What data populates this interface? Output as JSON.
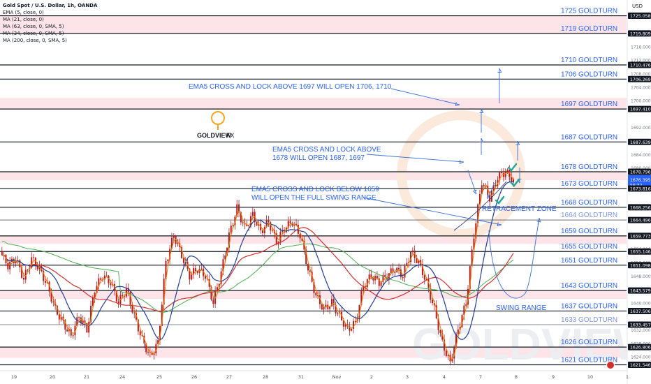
{
  "legend": {
    "title": "Gold Spot / U.S. Dollar, 1h, OANDA",
    "lines": [
      "EMA (5, close, 0)",
      "MA (21, close, 0)",
      "MA (63, close, 0, SMA, 5)",
      "MA (34, close, 0, SMA, 5)",
      "MA (200, close, 0, SMA, 5)"
    ]
  },
  "currency": "USD",
  "logo": {
    "brand": "GOLDVIEW",
    "suffix": "FX",
    "watermark": "GOLDVIEW FX"
  },
  "colors": {
    "line": "#131722",
    "zone": "#fde4e8",
    "label": "#2962ff",
    "arrow": "#3a6fd8",
    "ema": "#f57c00",
    "ma21": "#1e3f9a",
    "ma63": "#d32f2f",
    "ma200": "#4caf50",
    "candle": "#b71c1c",
    "tick": "#f5a623",
    "check": "#26a69a"
  },
  "chart_data": {
    "type": "candlestick",
    "symbol": "Gold Spot / U.S. Dollar",
    "interval": "1h",
    "ylim": [
      1620,
      1726
    ],
    "x_labels": [
      "19",
      "20",
      "21",
      "24",
      "25",
      "26",
      "27",
      "28",
      "31",
      "Nov",
      "2",
      "3",
      "4",
      "7",
      "8",
      "9",
      "10",
      "1"
    ],
    "price_axis_ticks": [
      "1624.000",
      "1628.000",
      "1632.000",
      "1640.000",
      "1648.000",
      "1652.000",
      "1656.000",
      "1660.000",
      "1680.000",
      "1684.000",
      "1688.000",
      "1692.000",
      "1700.000",
      "1704.000",
      "1708.000",
      "1712.000",
      "1716.000"
    ],
    "price_tags": [
      {
        "price": 1725.058,
        "label": "1725.058",
        "style": "dark"
      },
      {
        "price": 1719.809,
        "label": "1719.809",
        "style": "dark"
      },
      {
        "price": 1710.476,
        "label": "1710.476",
        "style": "dark"
      },
      {
        "price": 1706.269,
        "label": "1706.269",
        "style": "dark"
      },
      {
        "price": 1697.41,
        "label": "1697.410",
        "style": "dark"
      },
      {
        "price": 1687.639,
        "label": "1687.639",
        "style": "dark"
      },
      {
        "price": 1678.796,
        "label": "1678.796",
        "style": "dark"
      },
      {
        "price": 1676.395,
        "label": "1676.395",
        "sub": "56:32",
        "style": "blue"
      },
      {
        "price": 1673.816,
        "label": "1673.816",
        "style": "dark"
      },
      {
        "price": 1668.256,
        "label": "1668.256",
        "style": "dark"
      },
      {
        "price": 1664.496,
        "label": "1664.496",
        "style": "dark"
      },
      {
        "price": 1659.773,
        "label": "1659.773",
        "style": "dark"
      },
      {
        "price": 1655.146,
        "label": "1655.146",
        "style": "dark"
      },
      {
        "price": 1651.098,
        "label": "1651.098",
        "style": "dark"
      },
      {
        "price": 1643.579,
        "label": "1643.579",
        "style": "dark"
      },
      {
        "price": 1637.506,
        "label": "1637.506",
        "style": "dark"
      },
      {
        "price": 1633.457,
        "label": "1633.457",
        "style": "dark"
      },
      {
        "price": 1626.806,
        "label": "1626.806",
        "style": "dark"
      },
      {
        "price": 1621.546,
        "label": "1621.546",
        "style": "dark"
      }
    ],
    "levels": [
      {
        "price": 1725.058,
        "label": "1725 GOLDTURN",
        "zone_to": 1719.809
      },
      {
        "price": 1719.809,
        "label": "1719 GOLDTURN"
      },
      {
        "price": 1710.476,
        "label": "1710 GOLDTURN"
      },
      {
        "price": 1706.269,
        "label": "1706 GOLDTURN"
      },
      {
        "price": 1697.41,
        "label": "1697 GOLDTURN",
        "zone_to": 1700.7
      },
      {
        "price": 1687.639,
        "label": "1687 GOLDTURN"
      },
      {
        "price": 1678.796,
        "label": "1678  GOLDTURN",
        "zone_to": 1676.3
      },
      {
        "price": 1673.816,
        "label": "1673  GOLDTURN"
      },
      {
        "price": 1668.256,
        "label": "1668 GOLDTURN"
      },
      {
        "price": 1664.496,
        "label": "1664 GOLDTURN",
        "thin": true
      },
      {
        "price": 1659.773,
        "label": "1659 GOLDTURN",
        "zone_to": 1657.4
      },
      {
        "price": 1655.146,
        "label": "1655 GOLDTURN"
      },
      {
        "price": 1651.098,
        "label": "1651 GOLDTURN"
      },
      {
        "price": 1643.579,
        "label": "1643 GOLDTURN",
        "zone_to": 1641.1
      },
      {
        "price": 1637.506,
        "label": "1637 GOLDTURN"
      },
      {
        "price": 1633.457,
        "label": "1633 GOLDTURN",
        "thin": true
      },
      {
        "price": 1626.806,
        "label": "1626 GOLDTURN",
        "zone_to": 1623.6
      },
      {
        "price": 1621.546,
        "label": "1621 GOLDTURN"
      }
    ],
    "annotations": [
      {
        "text": "EMA5 CROSS AND LOCK ABOVE 1697 WILL OPEN 1706, 1710"
      },
      {
        "text": "EMA5 CROSS AND LOCK ABOVE"
      },
      {
        "text": "1678 WILL OPEN 1687, 1697"
      },
      {
        "text": "EMA5 CROSS AND LOCK BELOW 1659"
      },
      {
        "text": "WILL OPEN THE FULL SWING RANGE"
      },
      {
        "text": "RETRACEMENT ZONE"
      },
      {
        "text": "SWING RANGE"
      }
    ],
    "price_path": [
      [
        0,
        1655
      ],
      [
        4,
        1651
      ],
      [
        8,
        1653
      ],
      [
        12,
        1647
      ],
      [
        16,
        1653
      ],
      [
        20,
        1650
      ],
      [
        24,
        1645
      ],
      [
        28,
        1638
      ],
      [
        32,
        1634
      ],
      [
        36,
        1630
      ],
      [
        40,
        1636
      ],
      [
        44,
        1632
      ],
      [
        48,
        1644
      ],
      [
        52,
        1648
      ],
      [
        56,
        1646
      ],
      [
        60,
        1640
      ],
      [
        64,
        1644
      ],
      [
        68,
        1636
      ],
      [
        72,
        1629
      ],
      [
        76,
        1624
      ],
      [
        80,
        1628
      ],
      [
        84,
        1652
      ],
      [
        88,
        1660
      ],
      [
        92,
        1654
      ],
      [
        96,
        1648
      ],
      [
        100,
        1650
      ],
      [
        104,
        1648
      ],
      [
        108,
        1640
      ],
      [
        112,
        1649
      ],
      [
        116,
        1660
      ],
      [
        120,
        1668
      ],
      [
        124,
        1662
      ],
      [
        128,
        1666
      ],
      [
        132,
        1661
      ],
      [
        136,
        1664
      ],
      [
        140,
        1658
      ],
      [
        144,
        1662
      ],
      [
        148,
        1664
      ],
      [
        152,
        1660
      ],
      [
        156,
        1650
      ],
      [
        160,
        1642
      ],
      [
        164,
        1638
      ],
      [
        168,
        1640
      ],
      [
        172,
        1636
      ],
      [
        176,
        1632
      ],
      [
        180,
        1634
      ],
      [
        184,
        1645
      ],
      [
        188,
        1648
      ],
      [
        192,
        1646
      ],
      [
        196,
        1648
      ],
      [
        200,
        1650
      ],
      [
        204,
        1648
      ],
      [
        208,
        1655
      ],
      [
        212,
        1652
      ],
      [
        216,
        1646
      ],
      [
        220,
        1638
      ],
      [
        224,
        1628
      ],
      [
        228,
        1622
      ],
      [
        232,
        1632
      ],
      [
        236,
        1640
      ],
      [
        240,
        1660
      ],
      [
        244,
        1676
      ],
      [
        248,
        1671
      ],
      [
        252,
        1677
      ],
      [
        256,
        1679
      ],
      [
        260,
        1676
      ]
    ],
    "series": [
      {
        "name": "EMA (5, close, 0)",
        "offset": 0
      },
      {
        "name": "MA (21, close, 0)",
        "window": 21
      },
      {
        "name": "MA (63, close, 0, SMA, 5)",
        "window": 63
      },
      {
        "name": "MA (200, close, 0, SMA, 5)",
        "window": 200
      }
    ]
  }
}
